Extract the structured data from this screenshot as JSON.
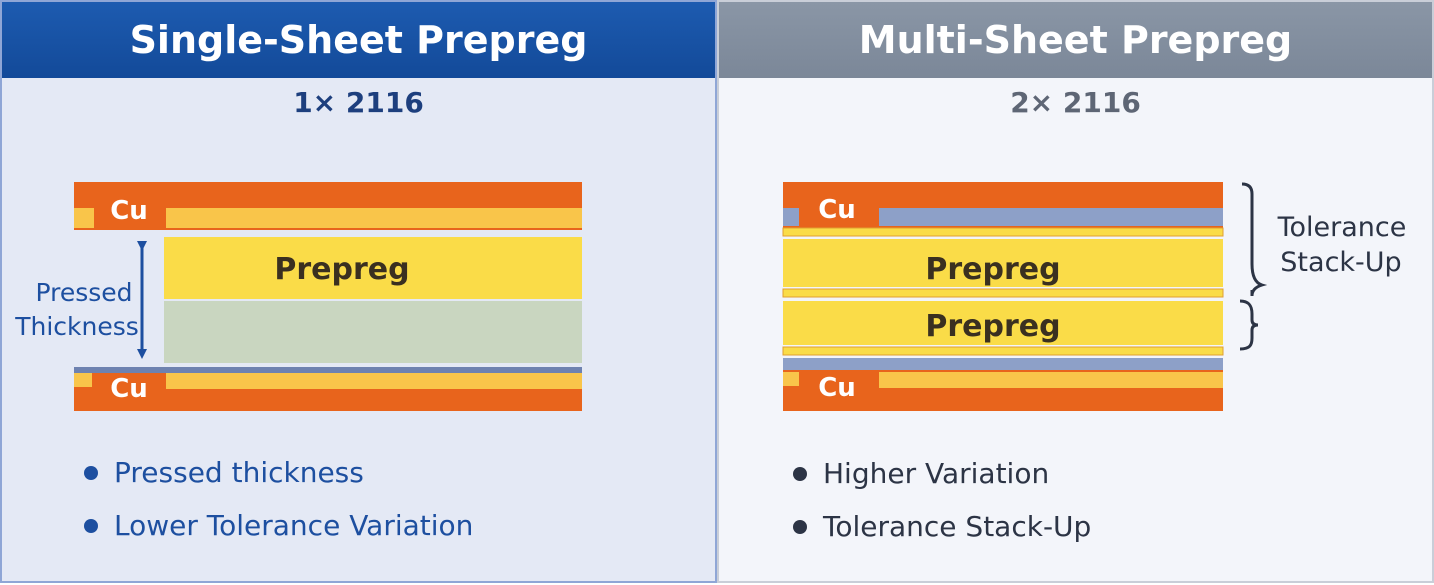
{
  "left": {
    "title": "Single-Sheet Prepreg",
    "subtitle": "1× 2116",
    "cu_label": "Cu",
    "prepreg_label": "Prepreg",
    "pressed_label_1": "Pressed",
    "pressed_label_2": "Thickness",
    "bullets": [
      "Pressed thickness",
      "Lower Tolerance Variation"
    ]
  },
  "right": {
    "title": "Multi-Sheet Prepreg",
    "subtitle": "2× 2116",
    "cu_label": "Cu",
    "prepreg_label": "Prepreg",
    "tolerance_label_1": "Tolerance",
    "tolerance_label_2": "Stack-Up",
    "bullets": [
      "Higher Variation",
      "Tolerance Stack-Up"
    ]
  },
  "colors": {
    "copper": "#e8641c",
    "prepreg": "#fadc48",
    "light_layer": "#f9c54a",
    "core": "#c9d6c0",
    "blue_gray": "#8da0c8",
    "left_header": "#1d5bb0",
    "right_header": "#7b8798"
  }
}
